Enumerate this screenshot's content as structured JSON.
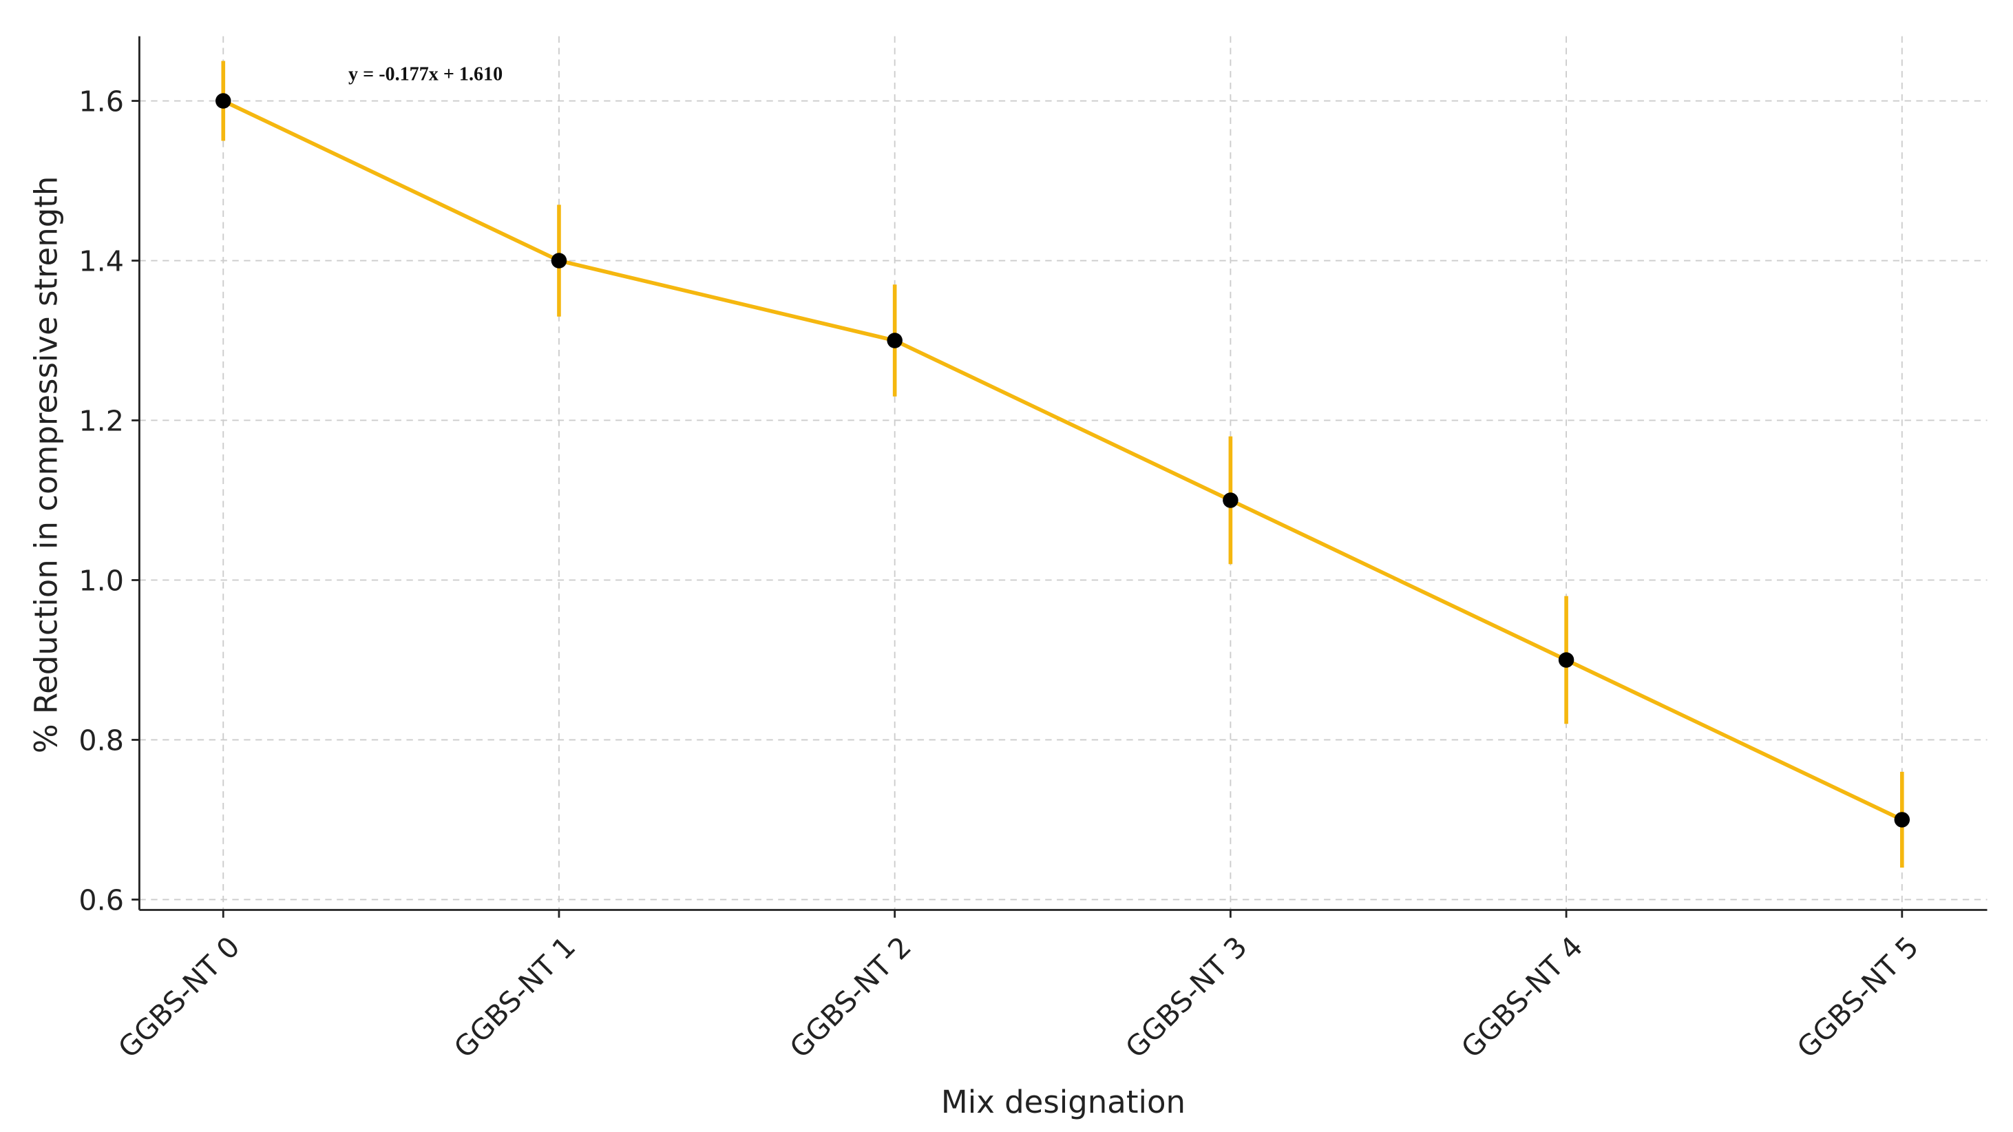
{
  "chart_data": {
    "type": "line",
    "x_label": "Mix designation",
    "y_label": "% Reduction in compressive strength",
    "annotation": "y = -0.177x + 1.610",
    "categories": [
      "GGBS-NT 0",
      "GGBS-NT 1",
      "GGBS-NT 2",
      "GGBS-NT 3",
      "GGBS-NT 4",
      "GGBS-NT 5"
    ],
    "values": [
      1.6,
      1.4,
      1.3,
      1.1,
      0.9,
      0.7
    ],
    "errors": [
      0.05,
      0.07,
      0.07,
      0.08,
      0.08,
      0.06
    ],
    "color": "#f5b70f",
    "marker_color": "#000000",
    "ylim": [
      0.587,
      1.681
    ],
    "yticks": [
      0.6,
      0.8,
      {
        "value": 1,
        "label": "1.0"
      },
      1.2,
      1.4,
      1.6
    ],
    "grid": true
  }
}
